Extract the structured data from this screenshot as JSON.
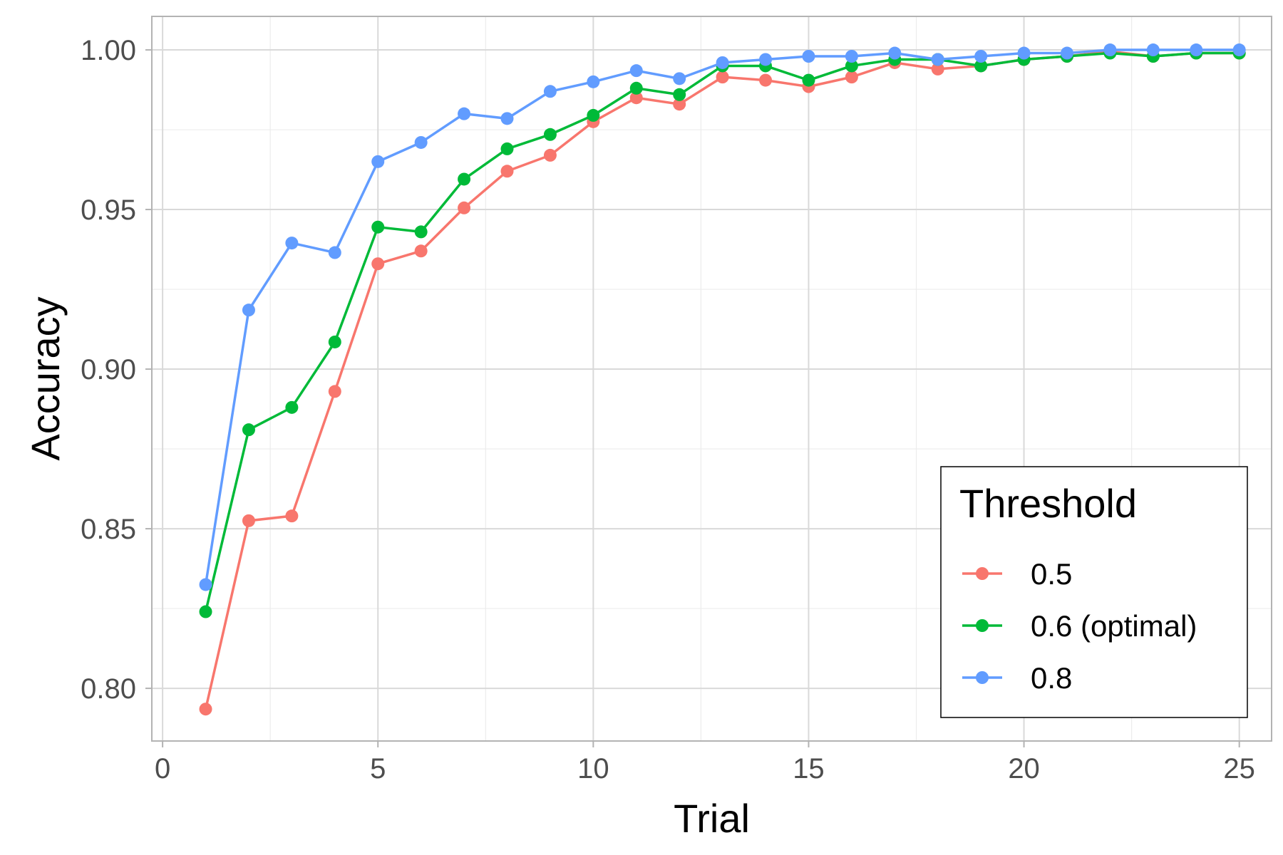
{
  "chart_data": {
    "type": "line",
    "xlabel": "Trial",
    "ylabel": "Accuracy",
    "xlim": [
      -0.25,
      25.75
    ],
    "ylim": [
      0.7835,
      1.0105
    ],
    "x_ticks": [
      0,
      5,
      10,
      15,
      20,
      25
    ],
    "x_tick_labels": [
      "0",
      "5",
      "10",
      "15",
      "20",
      "25"
    ],
    "y_ticks": [
      0.8,
      0.85,
      0.9,
      0.95,
      1.0
    ],
    "y_tick_labels": [
      "0.80",
      "0.85",
      "0.90",
      "0.95",
      "1.00"
    ],
    "grid": true,
    "legend": {
      "title": "Threshold",
      "position": "bottom-right"
    },
    "x": [
      1,
      2,
      3,
      4,
      5,
      6,
      7,
      8,
      9,
      10,
      11,
      12,
      13,
      14,
      15,
      16,
      17,
      18,
      19,
      20,
      21,
      22,
      23,
      24,
      25
    ],
    "series": [
      {
        "name": "0.5",
        "color": "#F8766D",
        "values": [
          0.7935,
          0.8525,
          0.854,
          0.893,
          0.933,
          0.937,
          0.9505,
          0.962,
          0.967,
          0.9775,
          0.985,
          0.983,
          0.9915,
          0.9905,
          0.9885,
          0.9915,
          0.996,
          0.994,
          0.995,
          0.997,
          0.998,
          0.9995,
          0.998,
          0.999,
          0.999
        ]
      },
      {
        "name": "0.6 (optimal)",
        "color": "#00BA38",
        "values": [
          0.824,
          0.881,
          0.888,
          0.9085,
          0.9445,
          0.943,
          0.9595,
          0.969,
          0.9735,
          0.9795,
          0.988,
          0.986,
          0.995,
          0.995,
          0.9905,
          0.995,
          0.997,
          0.997,
          0.995,
          0.997,
          0.998,
          0.999,
          0.998,
          0.999,
          0.999
        ]
      },
      {
        "name": "0.8",
        "color": "#619CFF",
        "values": [
          0.8325,
          0.9185,
          0.9395,
          0.9365,
          0.965,
          0.971,
          0.98,
          0.9785,
          0.987,
          0.99,
          0.9935,
          0.991,
          0.996,
          0.997,
          0.998,
          0.998,
          0.999,
          0.997,
          0.998,
          0.999,
          0.999,
          1.0,
          1.0,
          1.0,
          1.0
        ]
      }
    ]
  }
}
